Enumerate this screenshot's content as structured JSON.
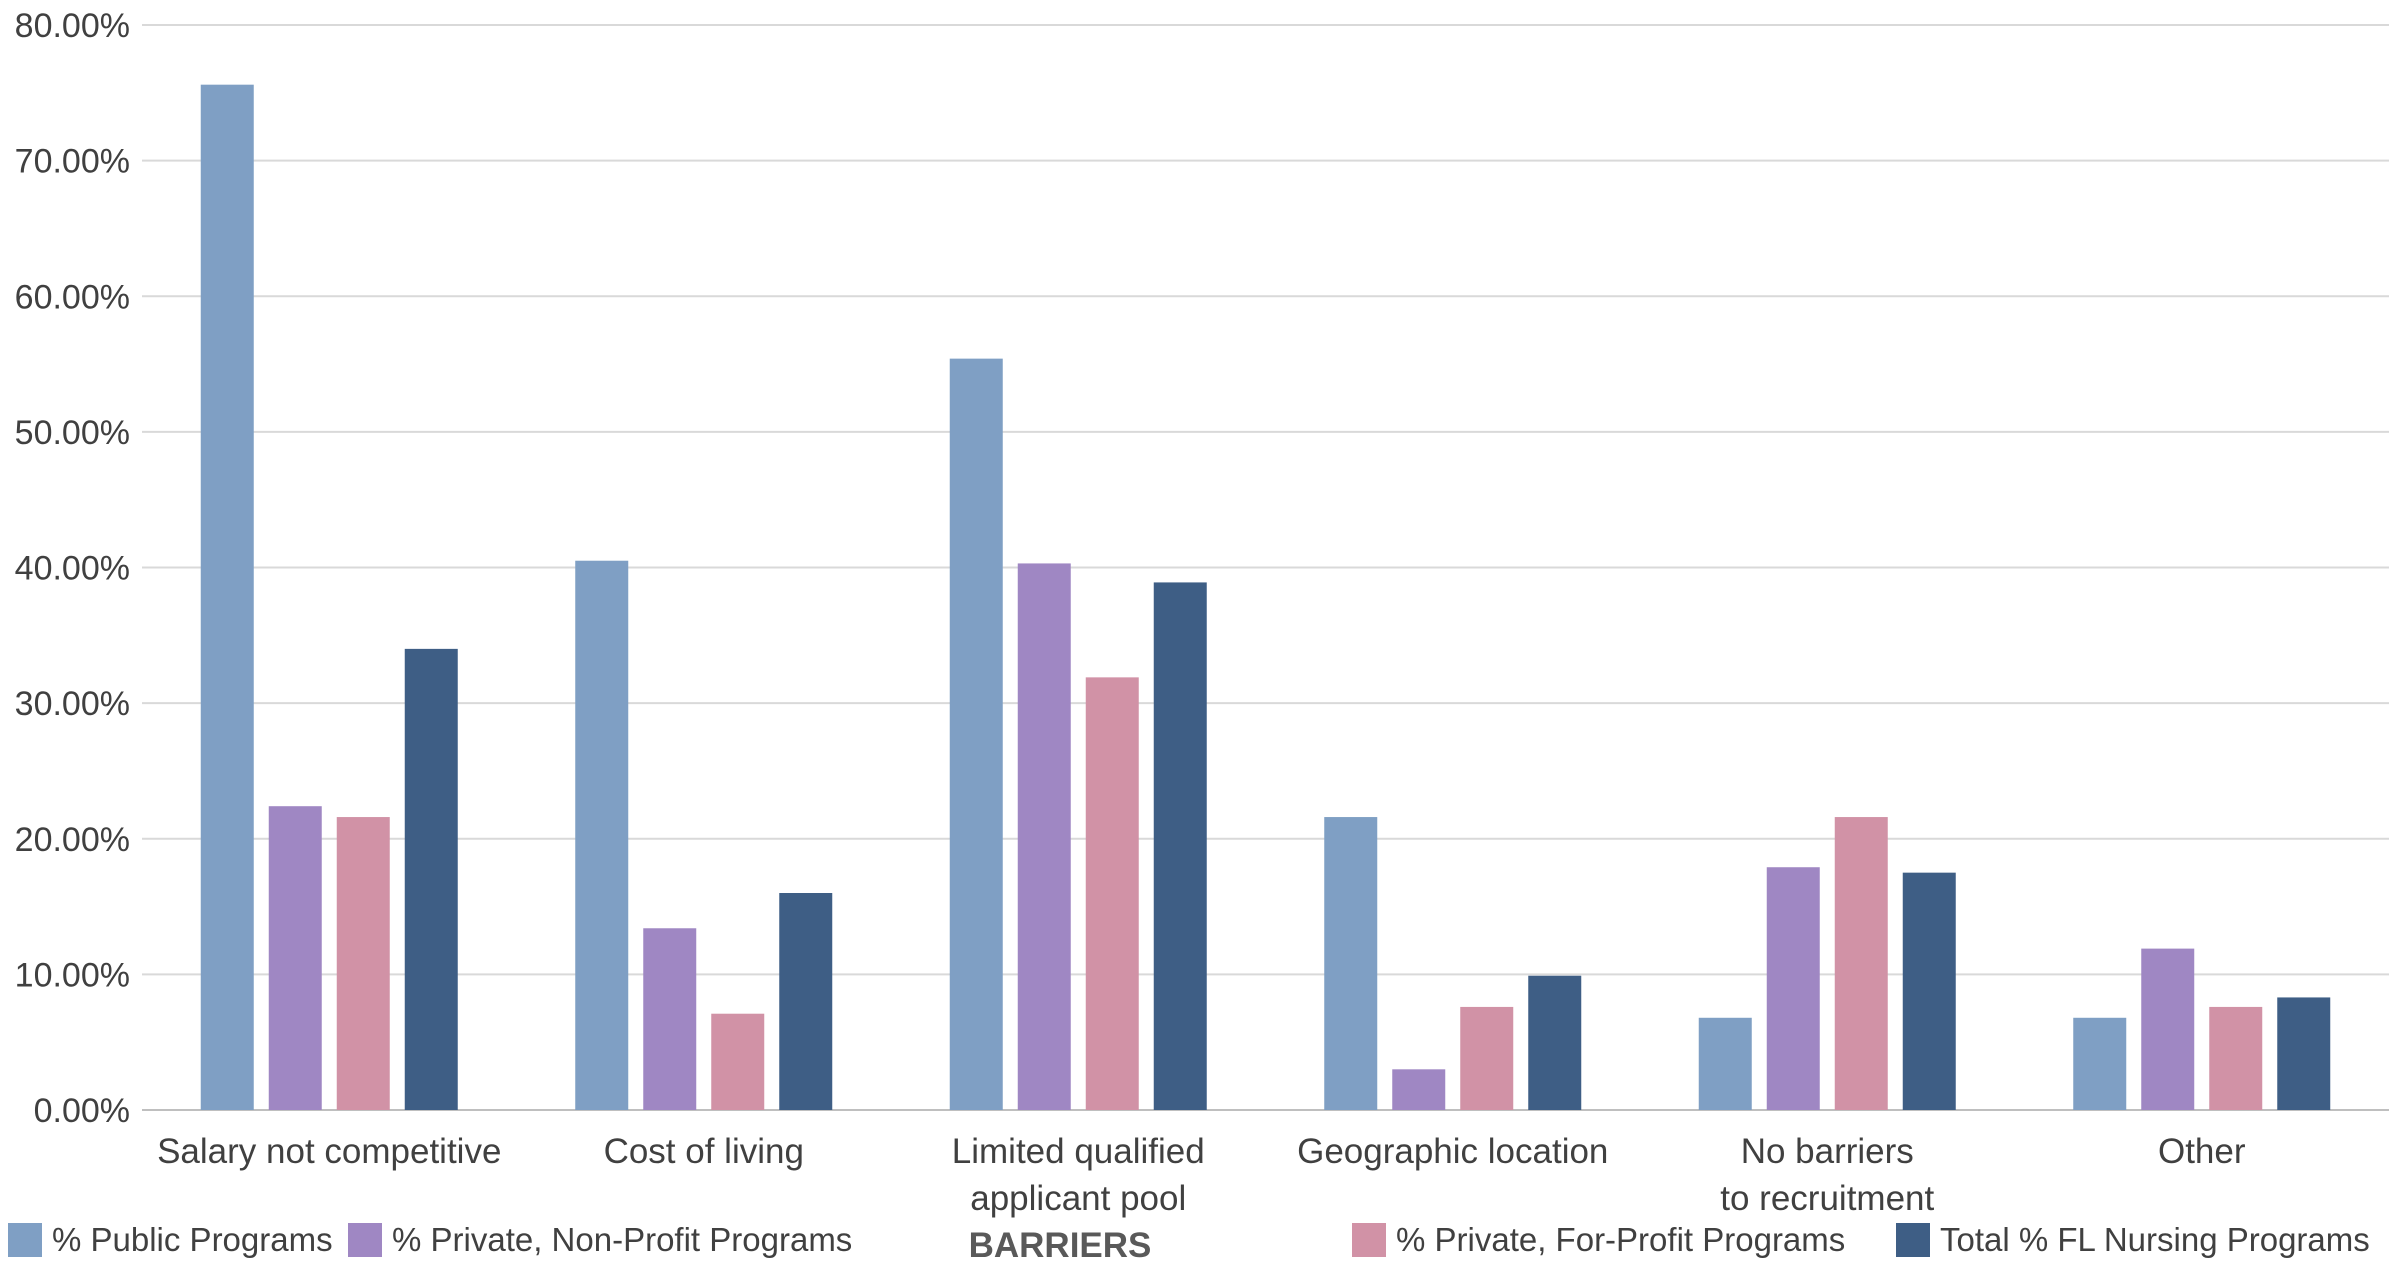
{
  "chart_data": {
    "type": "bar",
    "xlabel": "BARRIERS",
    "ylabel": "",
    "ylim": [
      0,
      80
    ],
    "y_ticks": [
      "0.00%",
      "10.00%",
      "20.00%",
      "30.00%",
      "40.00%",
      "50.00%",
      "60.00%",
      "70.00%",
      "80.00%"
    ],
    "grid": "horizontal",
    "legend_position": "bottom",
    "categories": [
      [
        "Salary not competitive"
      ],
      [
        "Cost of living"
      ],
      [
        "Limited qualified",
        "applicant pool"
      ],
      [
        "Geographic location"
      ],
      [
        "No barriers",
        "to recruitment"
      ],
      [
        "Other"
      ]
    ],
    "series": [
      {
        "name": "% Public Programs",
        "color": "#7F9FC4",
        "values": [
          75.6,
          40.5,
          55.4,
          21.6,
          6.8,
          6.8
        ]
      },
      {
        "name": "% Private, Non-Profit Programs",
        "color": "#9F87C3",
        "values": [
          22.4,
          13.4,
          40.3,
          3.0,
          17.9,
          11.9
        ]
      },
      {
        "name": "% Private, For-Profit Programs",
        "color": "#D192A6",
        "values": [
          21.6,
          7.1,
          31.9,
          7.6,
          21.6,
          7.6
        ]
      },
      {
        "name": "Total % FL Nursing Programs",
        "color": "#3E5E85",
        "values": [
          34.0,
          16.0,
          38.9,
          9.9,
          17.5,
          8.3
        ]
      }
    ]
  }
}
